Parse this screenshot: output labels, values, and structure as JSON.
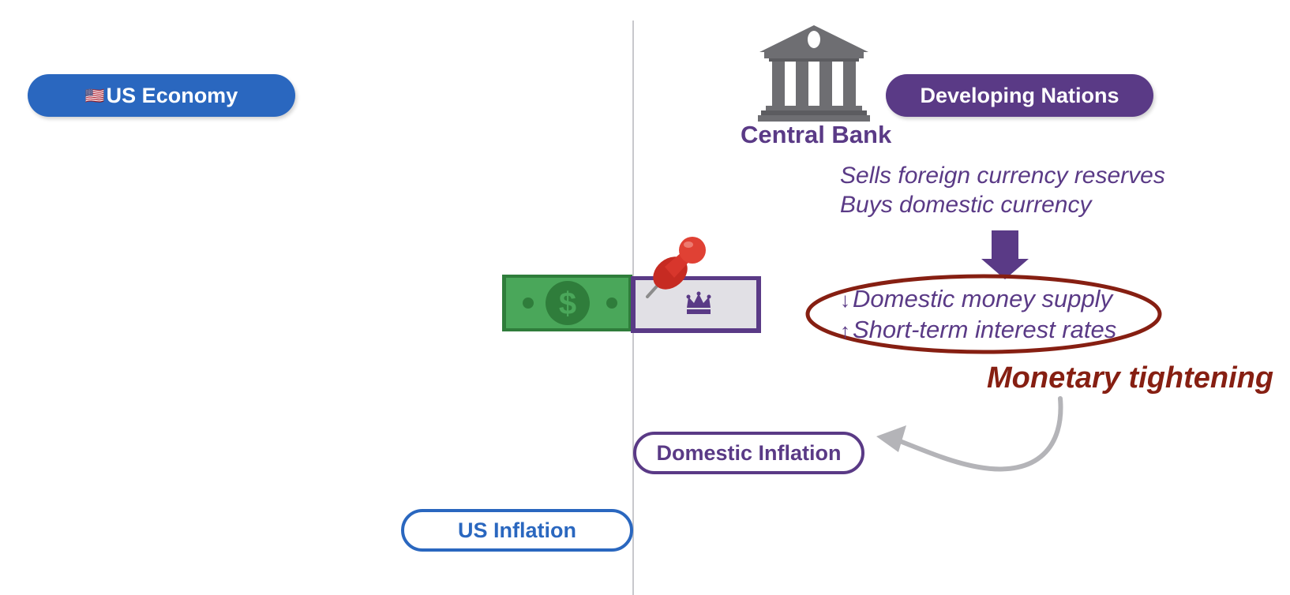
{
  "us_side": {
    "flag_icon": "us-flag-icon",
    "economy_label": "US Economy",
    "inflation_label": "US Inflation",
    "color": "#2a67bf"
  },
  "dev_side": {
    "title": "Developing Nations",
    "central_bank": "Central Bank",
    "bank_icon": "bank-building-icon",
    "actions": [
      "Sells foreign currency reserves",
      "Buys domestic currency"
    ],
    "effects": [
      {
        "arrow": "↓",
        "text": "Domestic money supply"
      },
      {
        "arrow": "↑",
        "text": "Short-term interest rates"
      }
    ],
    "result": "Monetary tightening",
    "inflation_label": "Domestic Inflation",
    "color": "#5a3a86",
    "accent": "#861f12"
  },
  "currency_peg": {
    "icons": [
      "dollar-bill-icon",
      "domestic-currency-bill-icon",
      "pushpin-icon"
    ]
  }
}
